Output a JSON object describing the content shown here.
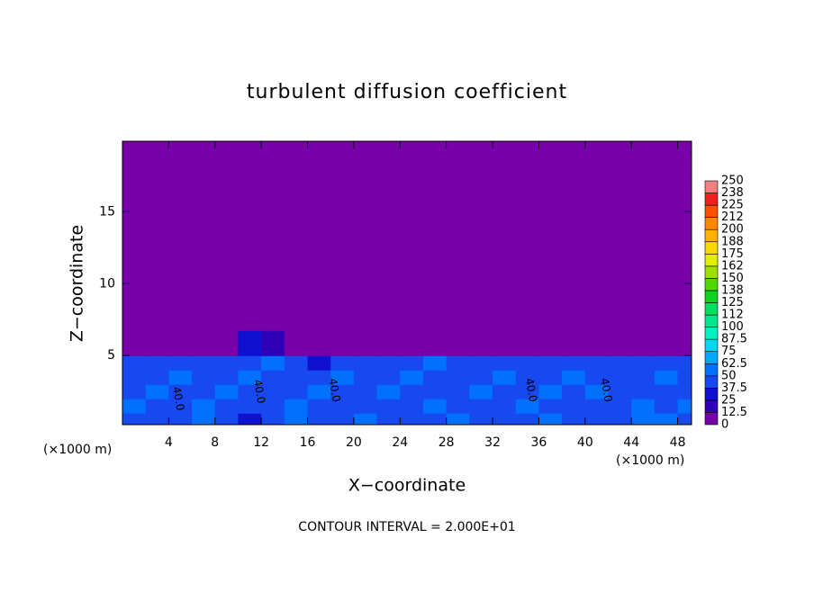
{
  "chart_data": {
    "type": "contour",
    "title": "turbulent diffusion coefficient",
    "xlabel": "X−coordinate",
    "ylabel": "Z−coordinate",
    "x_unit": "(×1000 m)",
    "y_unit": "(×1000 m)",
    "footer": "CONTOUR INTERVAL = 2.000E+01",
    "xlim": [
      0,
      49.2
    ],
    "ylim": [
      0.2,
      19.9
    ],
    "xticks": [
      4,
      8,
      12,
      16,
      20,
      24,
      28,
      32,
      36,
      40,
      44,
      48
    ],
    "yticks": [
      5,
      10,
      15
    ],
    "x": [
      1,
      3,
      5,
      7,
      9,
      11,
      13,
      15,
      17,
      19,
      21,
      23,
      25,
      27,
      29,
      31,
      33,
      35,
      37,
      39,
      41,
      43,
      45,
      47,
      49
    ],
    "y": [
      0.5,
      1.5,
      2.5,
      3.5,
      4.5,
      5.5,
      8,
      12,
      17
    ],
    "values": [
      [
        45,
        40,
        45,
        50,
        40,
        35,
        45,
        55,
        40,
        45,
        50,
        40,
        38,
        45,
        50,
        45,
        40,
        48,
        55,
        42,
        40,
        45,
        50,
        60,
        45
      ],
      [
        50,
        45,
        40,
        55,
        45,
        38,
        42,
        50,
        45,
        40,
        48,
        45,
        40,
        50,
        45,
        42,
        45,
        50,
        45,
        40,
        45,
        42,
        55,
        45,
        50
      ],
      [
        42,
        50,
        45,
        40,
        50,
        45,
        48,
        42,
        50,
        45,
        40,
        50,
        45,
        42,
        48,
        50,
        45,
        40,
        50,
        45,
        50,
        45,
        40,
        48,
        45
      ],
      [
        45,
        40,
        50,
        45,
        42,
        50,
        45,
        48,
        40,
        50,
        45,
        42,
        50,
        45,
        40,
        45,
        50,
        45,
        42,
        50,
        45,
        48,
        45,
        50,
        42
      ],
      [
        40,
        45,
        38,
        42,
        45,
        40,
        50,
        45,
        35,
        45,
        48,
        40,
        45,
        50,
        42,
        45,
        48,
        40,
        45,
        42,
        45,
        40,
        48,
        45,
        40
      ],
      [
        5,
        5,
        5,
        5,
        8,
        25,
        15,
        5,
        5,
        5,
        5,
        5,
        5,
        5,
        5,
        5,
        5,
        5,
        5,
        5,
        5,
        5,
        5,
        5,
        5
      ],
      [
        0,
        0,
        0,
        0,
        0,
        0,
        0,
        0,
        0,
        0,
        0,
        0,
        0,
        0,
        0,
        0,
        0,
        0,
        0,
        0,
        0,
        0,
        0,
        0,
        0
      ],
      [
        0,
        0,
        0,
        0,
        0,
        0,
        0,
        0,
        0,
        0,
        0,
        0,
        0,
        0,
        0,
        0,
        0,
        0,
        0,
        0,
        0,
        0,
        0,
        0,
        0
      ],
      [
        0,
        0,
        0,
        0,
        0,
        0,
        0,
        0,
        0,
        0,
        0,
        0,
        0,
        0,
        0,
        0,
        0,
        0,
        0,
        0,
        0,
        0,
        0,
        0,
        0
      ]
    ],
    "contour_labels": [
      {
        "text": "40.0",
        "x": 4.8,
        "y": 2
      },
      {
        "text": "40.0",
        "x": 11.8,
        "y": 2.5
      },
      {
        "text": "40.0",
        "x": 18.3,
        "y": 2.6
      },
      {
        "text": "40.0",
        "x": 35.3,
        "y": 2.6
      },
      {
        "text": "40.0",
        "x": 41.8,
        "y": 2.6
      }
    ],
    "colorbar_ticks": [
      0,
      12.5,
      25,
      37.5,
      50,
      62.5,
      75,
      87.5,
      100,
      {
        "value": 112.5,
        "label": "112"
      },
      125,
      {
        "value": 137.5,
        "label": "138"
      },
      150,
      {
        "value": 162.5,
        "label": "162"
      },
      175,
      {
        "value": 187.5,
        "label": "188"
      },
      200,
      {
        "value": 212.5,
        "label": "212"
      },
      225,
      {
        "value": 237.5,
        "label": "238"
      },
      250
    ],
    "colors": [
      "#7800a8",
      "#3000b8",
      "#1010d0",
      "#1848f0",
      "#0070ff",
      "#00a8ff",
      "#00d8f0",
      "#00f0c0",
      "#00e890",
      "#00e060",
      "#10d020",
      "#50d800",
      "#a0e000",
      "#e0f000",
      "#f8d800",
      "#ffb000",
      "#ff8800",
      "#ff5000",
      "#f02020",
      "#f08080"
    ]
  }
}
